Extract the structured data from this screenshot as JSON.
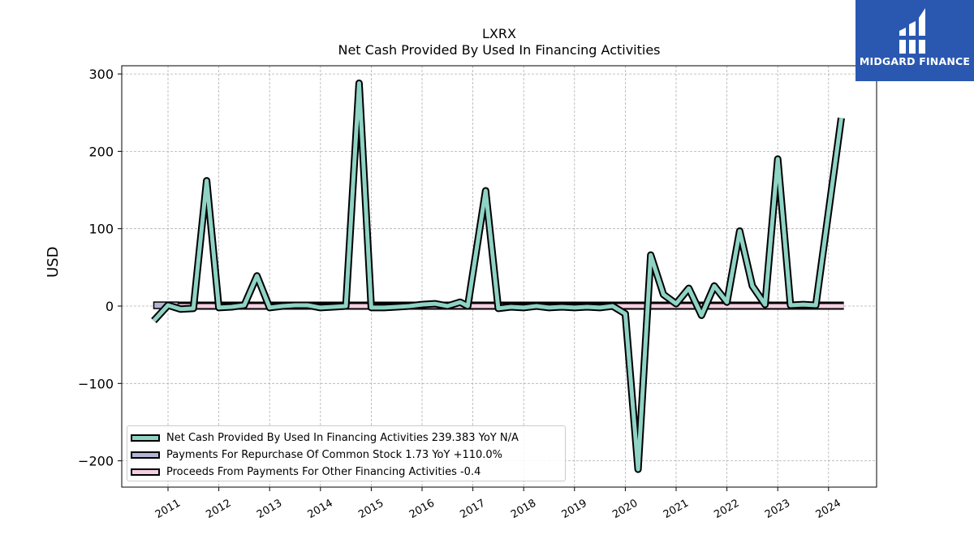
{
  "title_ticker": "LXRX",
  "title_main": "Net Cash Provided By Used In Financing Activities",
  "ylabel": "USD",
  "logo": {
    "text": "MIDGARD FINANCE",
    "bg_color": "#2a58b0"
  },
  "legend": [
    {
      "label": "Net Cash Provided By Used In Financing Activities  239.383 YoY N/A",
      "color": "#8fd3c5"
    },
    {
      "label": "Payments For Repurchase Of Common Stock  1.73 YoY +110.0%",
      "color": "#b3b4d6"
    },
    {
      "label": "Proceeds From Payments For Other Financing Activities  -0.4",
      "color": "#f5cfe1"
    }
  ],
  "chart_data": {
    "type": "line",
    "title": "LXRX\nNet Cash Provided By Used In Financing Activities",
    "ylabel": "USD",
    "xlabel": "",
    "ylim": [
      -220,
      310
    ],
    "xlim": [
      2010.0,
      2025.0
    ],
    "yticks": [
      300,
      200,
      100,
      0,
      -100,
      -200
    ],
    "ytick_labels": [
      "300",
      "200",
      "100",
      "0",
      "−100",
      "−200"
    ],
    "xticks": [
      2011,
      2012,
      2013,
      2014,
      2015,
      2016,
      2017,
      2018,
      2019,
      2020,
      2021,
      2022,
      2023,
      2024
    ],
    "grid": true,
    "legend_position": "lower-left",
    "series": [
      {
        "name": "Net Cash Provided By Used In Financing Activities",
        "color": "#8fd3c5",
        "points": [
          [
            2010.72,
            -19
          ],
          [
            2011.0,
            1
          ],
          [
            2011.25,
            -4
          ],
          [
            2011.5,
            -3
          ],
          [
            2011.76,
            162
          ],
          [
            2012.0,
            -2
          ],
          [
            2012.25,
            -1
          ],
          [
            2012.5,
            1
          ],
          [
            2012.75,
            39
          ],
          [
            2013.0,
            -2
          ],
          [
            2013.25,
            0
          ],
          [
            2013.5,
            1
          ],
          [
            2013.75,
            1
          ],
          [
            2014.0,
            -2
          ],
          [
            2014.25,
            -1
          ],
          [
            2014.5,
            0
          ],
          [
            2014.76,
            288
          ],
          [
            2015.0,
            -2
          ],
          [
            2015.25,
            -2
          ],
          [
            2015.5,
            -1
          ],
          [
            2015.75,
            0
          ],
          [
            2016.0,
            2
          ],
          [
            2016.25,
            3
          ],
          [
            2016.5,
            0
          ],
          [
            2016.75,
            5
          ],
          [
            2016.9,
            0
          ],
          [
            2017.25,
            149
          ],
          [
            2017.5,
            -3
          ],
          [
            2017.75,
            -1
          ],
          [
            2018.0,
            -2
          ],
          [
            2018.25,
            0
          ],
          [
            2018.5,
            -2
          ],
          [
            2018.75,
            -1
          ],
          [
            2019.0,
            -2
          ],
          [
            2019.25,
            -1
          ],
          [
            2019.5,
            -2
          ],
          [
            2019.75,
            0
          ],
          [
            2020.0,
            -10
          ],
          [
            2020.25,
            -211
          ],
          [
            2020.5,
            66
          ],
          [
            2020.75,
            15
          ],
          [
            2021.0,
            3
          ],
          [
            2021.25,
            23
          ],
          [
            2021.5,
            -12
          ],
          [
            2021.75,
            26
          ],
          [
            2022.0,
            5
          ],
          [
            2022.25,
            97
          ],
          [
            2022.5,
            26
          ],
          [
            2022.75,
            2
          ],
          [
            2023.0,
            190
          ],
          [
            2023.25,
            1
          ],
          [
            2023.5,
            2
          ],
          [
            2023.75,
            1
          ],
          [
            2024.25,
            243
          ]
        ]
      },
      {
        "name": "Payments For Repurchase Of Common Stock",
        "color": "#b3b4d6",
        "points": [
          [
            2010.72,
            1
          ],
          [
            2024.3,
            1
          ]
        ],
        "segment_highlight": [
          2010.72,
          2011.2
        ]
      },
      {
        "name": "Proceeds From Payments For Other Financing Activities",
        "color": "#f5cfe1",
        "points": [
          [
            2011.2,
            0
          ],
          [
            2024.3,
            0
          ]
        ]
      }
    ]
  }
}
